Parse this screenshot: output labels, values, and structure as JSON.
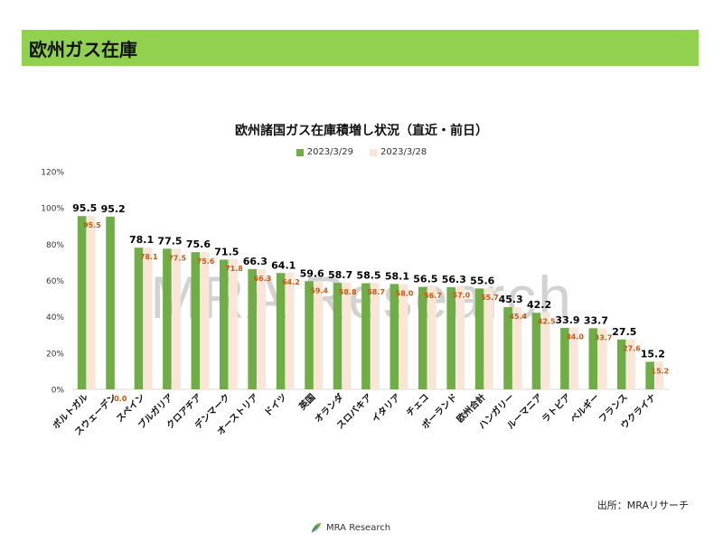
{
  "header": {
    "title": "欧州ガス在庫"
  },
  "chart_data": {
    "type": "bar",
    "title": "欧州諸国ガス在庫積増し状況（直近・前日）",
    "xlabel": "",
    "ylabel": "",
    "ylim": [
      0,
      120
    ],
    "y_ticks": [
      "0%",
      "20%",
      "40%",
      "60%",
      "80%",
      "100%",
      "120%"
    ],
    "grid": false,
    "legend_position": "top-center",
    "categories": [
      "ポルトガル",
      "スウェーデン",
      "スペイン",
      "ブルガリア",
      "クロアチア",
      "デンマーク",
      "オーストリア",
      "ドイツ",
      "英国",
      "オランダ",
      "スロバキア",
      "イタリア",
      "チェコ",
      "ポーランド",
      "欧州合計",
      "ハンガリー",
      "ルーマニア",
      "ラトビア",
      "ベルギー",
      "フランス",
      "ウクライナ"
    ],
    "series": [
      {
        "name": "2023/3/29",
        "color": "#70ad47",
        "label_color": "#000000",
        "values": [
          95.5,
          95.2,
          78.1,
          77.5,
          75.6,
          71.5,
          66.3,
          64.1,
          59.6,
          58.7,
          58.5,
          58.1,
          56.5,
          56.3,
          55.6,
          45.3,
          42.2,
          33.9,
          33.7,
          27.5,
          15.2
        ]
      },
      {
        "name": "2023/3/28",
        "color": "#fbe5d6",
        "label_color": "#c55a11",
        "values": [
          95.5,
          0.0,
          78.1,
          77.5,
          75.6,
          71.8,
          66.3,
          64.2,
          59.4,
          58.8,
          58.7,
          58.0,
          56.7,
          57.0,
          55.7,
          45.4,
          42.5,
          34.0,
          33.7,
          27.6,
          15.2
        ]
      }
    ]
  },
  "watermark": "MRA Research",
  "source": "出所：MRAリサーチ",
  "footer_logo_text": "MRA Research"
}
